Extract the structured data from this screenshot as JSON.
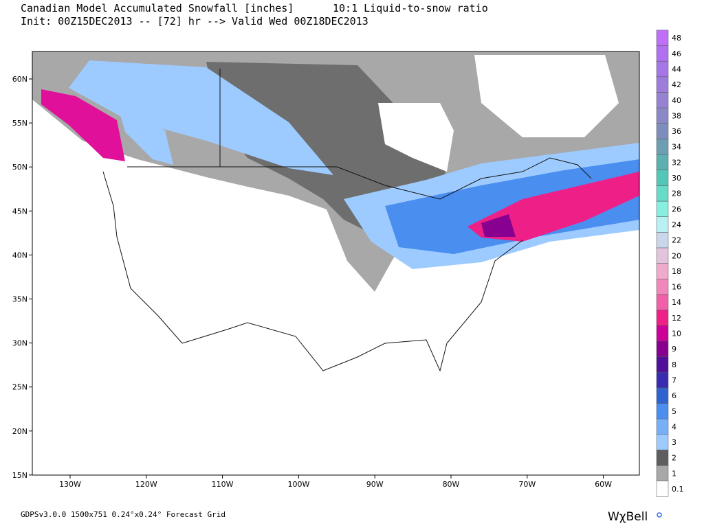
{
  "header": {
    "title": "Canadian Model Accumulated Snowfall [inches]",
    "ratio": "10:1 Liquid-to-snow ratio",
    "init": "Init: 00Z15DEC2013 -- [72] hr --> Valid Wed 00Z18DEC2013"
  },
  "map": {
    "lat_labels": [
      "60N",
      "55N",
      "50N",
      "45N",
      "40N",
      "35N",
      "30N",
      "25N",
      "20N",
      "15N"
    ],
    "lon_labels": [
      "130W",
      "120W",
      "110W",
      "100W",
      "90W",
      "80W",
      "70W",
      "60W"
    ]
  },
  "colorbar": {
    "labels": [
      "0.1",
      "1",
      "2",
      "3",
      "4",
      "5",
      "6",
      "7",
      "8",
      "9",
      "10",
      "12",
      "14",
      "16",
      "18",
      "20",
      "22",
      "24",
      "26",
      "28",
      "30",
      "32",
      "34",
      "36",
      "38",
      "40",
      "42",
      "44",
      "46",
      "48"
    ],
    "colors": [
      "#ffffff",
      "#a8a8a8",
      "#5e5e5e",
      "#9ecbff",
      "#78b0f8",
      "#4a8ef0",
      "#2f64d0",
      "#3a2cb0",
      "#50109a",
      "#880090",
      "#cc0098",
      "#ee2088",
      "#f060a8",
      "#f088bc",
      "#f0aacc",
      "#e4c4dc",
      "#c8d8ea",
      "#b8f0f4",
      "#88eee0",
      "#66dcc8",
      "#54c6b8",
      "#5cb0b2",
      "#6e9eb4",
      "#7e8ebc",
      "#8c88c8",
      "#9682d2",
      "#9e7cdc",
      "#a676e6",
      "#b070f0",
      "#c070f8"
    ]
  },
  "footer": {
    "grid": "GDPSv3.0.0 1500x751 0.24°x0.24° Forecast Grid",
    "logo": "WχBell"
  }
}
